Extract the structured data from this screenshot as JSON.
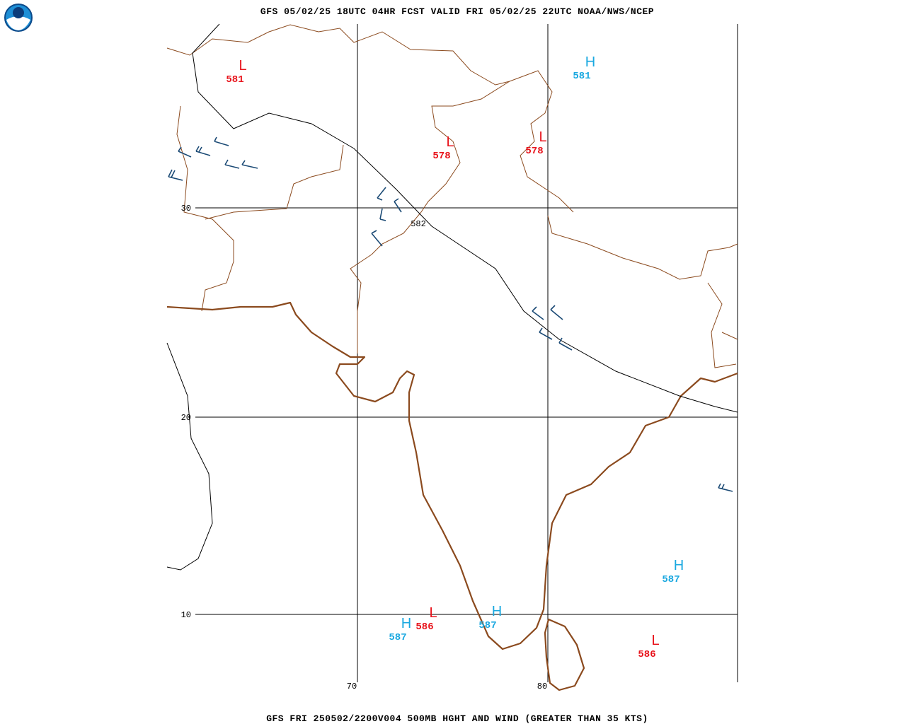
{
  "header": {
    "title": "GFS 05/02/25 18UTC 04HR FCST VALID FRI 05/02/25 22UTC NOAA/NWS/NCEP"
  },
  "footer": {
    "caption": "GFS FRI 250502/2200V004 500MB HGHT AND WIND (GREATER THAN 35 KTS)"
  },
  "grid": {
    "lat_labels": [
      30,
      20,
      10
    ],
    "lon_labels": [
      70,
      80
    ]
  },
  "contour_labels": [
    582
  ],
  "centers": [
    {
      "symbol": "L",
      "value": 581
    },
    {
      "symbol": "H",
      "value": 581
    },
    {
      "symbol": "L",
      "value": 578
    },
    {
      "symbol": "L",
      "value": 578
    },
    {
      "symbol": "H",
      "value": 587
    },
    {
      "symbol": "H",
      "value": 587
    },
    {
      "symbol": "L",
      "value": 586
    },
    {
      "symbol": "H",
      "value": 587
    },
    {
      "symbol": "L",
      "value": 586
    }
  ]
}
